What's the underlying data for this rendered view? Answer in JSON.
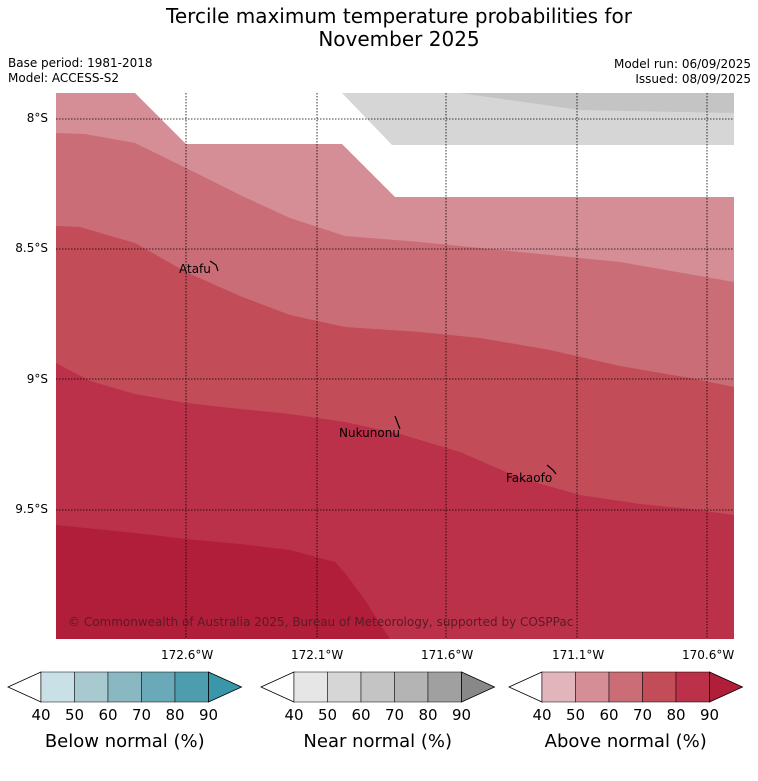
{
  "title_line1": "Tercile maximum temperature probabilities for",
  "title_line2": "November 2025",
  "base_period": "Base period: 1981-2018",
  "model": "Model: ACCESS-S2",
  "model_run": "Model run: 06/09/2025",
  "issued": "Issued: 08/09/2025",
  "lat_labels": [
    "8°S",
    "8.5°S",
    "9°S",
    "9.5°S"
  ],
  "lon_labels": [
    "172.6°W",
    "172.1°W",
    "171.6°W",
    "171.1°W",
    "170.6°W"
  ],
  "places": [
    "Atafu",
    "Nukunonu",
    "Fakaofo"
  ],
  "copyright": "© Commonwealth of Australia 2025, Bureau of Meteorology, supported by COSPPac",
  "colorbars": [
    {
      "title": "Below normal (%)",
      "ticks": [
        "40",
        "50",
        "60",
        "70",
        "80",
        "90"
      ],
      "colors": [
        "#c9e1e6",
        "#a8c9cf",
        "#89b8c3",
        "#6aa9b7",
        "#4d9daf",
        "#3a97a9"
      ]
    },
    {
      "title": "Near normal (%)",
      "ticks": [
        "40",
        "50",
        "60",
        "70",
        "80",
        "90"
      ],
      "colors": [
        "#e6e6e6",
        "#d6d6d6",
        "#c4c4c4",
        "#b4b4b4",
        "#a0a0a0",
        "#888888"
      ]
    },
    {
      "title": "Above normal (%)",
      "ticks": [
        "40",
        "50",
        "60",
        "70",
        "80",
        "90"
      ],
      "colors": [
        "#e2b5bd",
        "#d58d96",
        "#cb6d76",
        "#c24c58",
        "#bb314a",
        "#b01e3a"
      ]
    }
  ],
  "colors": {
    "above_50": "#d58d96",
    "above_60": "#cb6d76",
    "above_70": "#c24c58",
    "above_80": "#bb314a",
    "above_90": "#b01e3a",
    "near_50": "#d6d6d6",
    "near_60": "#c4c4c4"
  }
}
